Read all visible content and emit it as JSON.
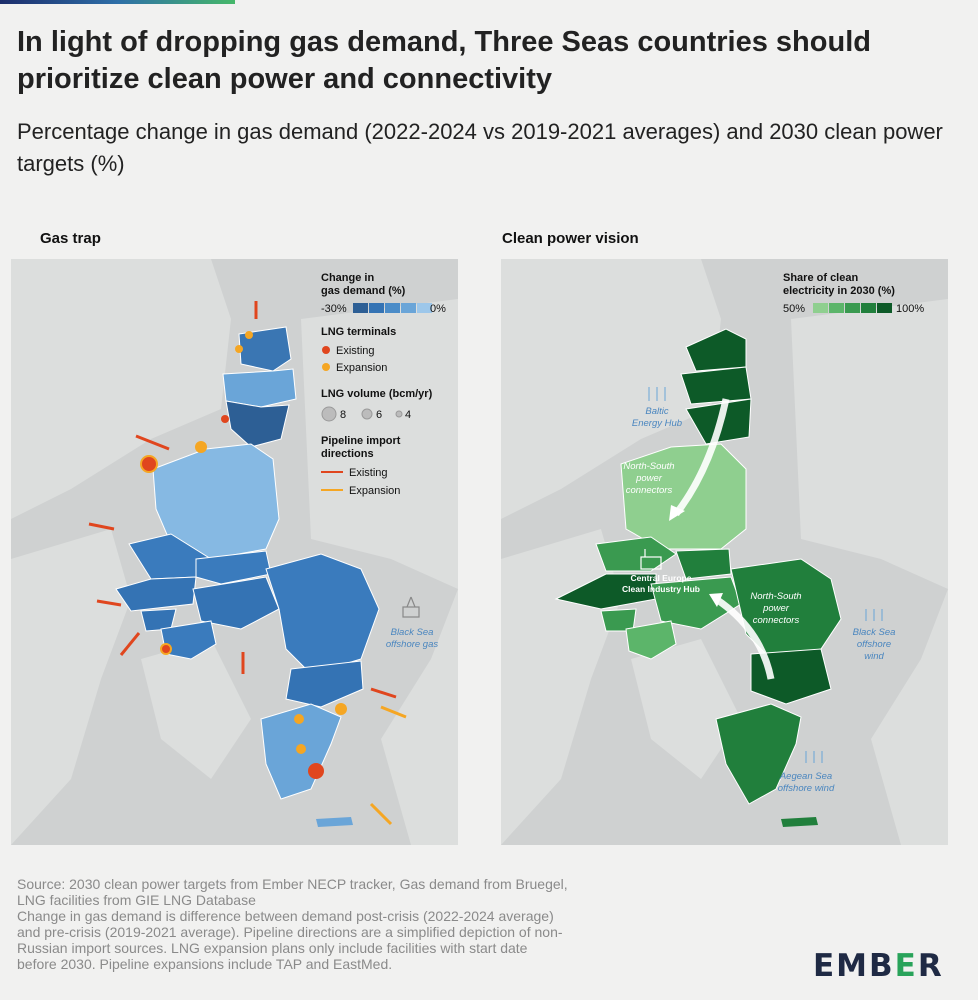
{
  "title": "In light of dropping gas demand, Three Seas countries should prioritize clean power and connectivity",
  "subtitle": "Percentage change in gas demand (2022-2024 vs 2019-2021 averages) and 2030 clean power targets (%)",
  "left_panel": {
    "title": "Gas trap",
    "legend": {
      "change_title_1": "Change in",
      "change_title_2": "gas demand (%)",
      "change_min": "-30%",
      "change_max": "0%",
      "change_colors": [
        "#2d5f95",
        "#3473b4",
        "#4b8cc8",
        "#6aa5d8",
        "#9dc7ea"
      ],
      "lng_title": "LNG terminals",
      "lng_existing": "Existing",
      "lng_expansion": "Expansion",
      "lng_existing_color": "#e0461e",
      "lng_expansion_color": "#f5a623",
      "volume_title": "LNG volume (bcm/yr)",
      "volume_values": [
        "8",
        "6",
        "4"
      ],
      "pipeline_title_1": "Pipeline import",
      "pipeline_title_2": "directions",
      "pipeline_existing": "Existing",
      "pipeline_expansion": "Expansion"
    },
    "labels": {
      "black_sea_1": "Black Sea",
      "black_sea_2": "offshore gas"
    }
  },
  "right_panel": {
    "title": "Clean power vision",
    "legend": {
      "share_title_1": "Share of clean",
      "share_title_2": "electricity in 2030 (%)",
      "share_min": "50%",
      "share_max": "100%",
      "share_colors": [
        "#8fcf8f",
        "#5cb56a",
        "#3a9a50",
        "#217f3c",
        "#0d5a28"
      ]
    },
    "labels": {
      "baltic_1": "Baltic",
      "baltic_2": "Energy Hub",
      "ns1_1": "North-South",
      "ns1_2": "power",
      "ns1_3": "connectors",
      "hub_1": "Central Europe",
      "hub_2": "Clean Industry Hub",
      "ns2_1": "North-South",
      "ns2_2": "power",
      "ns2_3": "connectors",
      "blacksea_1": "Black Sea",
      "blacksea_2": "offshore",
      "blacksea_3": "wind",
      "aegean_1": "Aegean Sea",
      "aegean_2": "offshore wind"
    }
  },
  "source": {
    "line1": "Source: 2030 clean power targets from Ember NECP tracker, Gas demand from Bruegel,",
    "line2": "LNG facilities from GIE LNG Database",
    "line3": "Change in gas demand is difference between demand post-crisis (2022-2024 average)",
    "line4": "and pre-crisis (2019-2021 average). Pipeline directions are a simplified depiction of non-",
    "line5": "Russian import sources. LNG expansion plans only include facilities with start date",
    "line6": "before 2030. Pipeline expansions include TAP and EastMed."
  },
  "logo": {
    "part1": "EMB",
    "part2": "E",
    "part3": "R"
  }
}
